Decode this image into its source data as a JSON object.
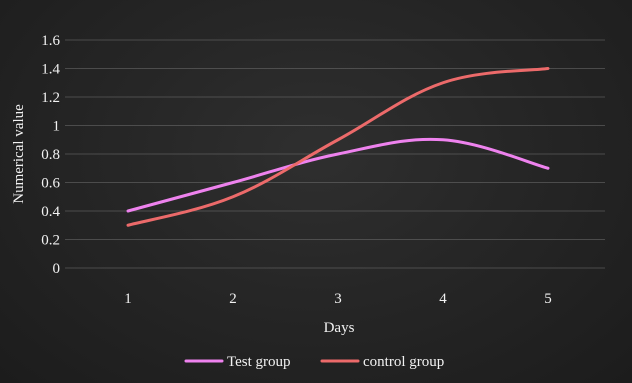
{
  "chart_data": {
    "type": "line",
    "title": "",
    "xlabel": "Days",
    "ylabel": "Numerical value",
    "categories": [
      "1",
      "2",
      "3",
      "4",
      "5"
    ],
    "ylim": [
      0,
      1.6
    ],
    "yticks": [
      "0",
      "0.2",
      "0.4",
      "0.6",
      "0.8",
      "1",
      "1.2",
      "1.4",
      "1.6"
    ],
    "grid": "horizontal",
    "legend_position": "bottom",
    "series": [
      {
        "name": "Test group",
        "values": [
          0.4,
          0.6,
          0.8,
          0.9,
          0.7
        ],
        "color": "#ee82ee"
      },
      {
        "name": "control group",
        "values": [
          0.3,
          0.5,
          0.9,
          1.3,
          1.4
        ],
        "color": "#ec6a6a"
      }
    ]
  }
}
